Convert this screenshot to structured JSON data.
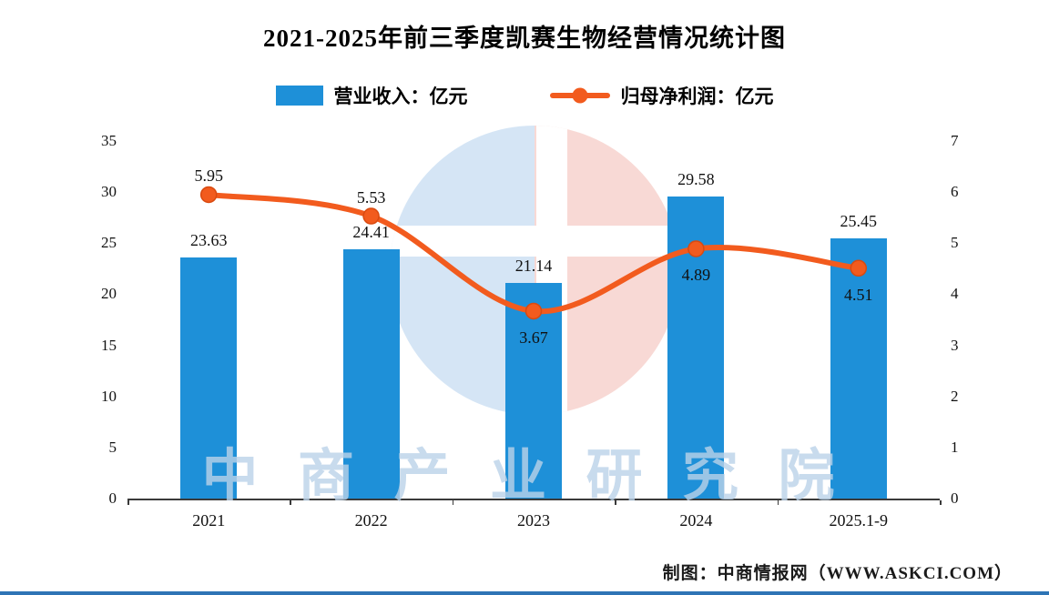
{
  "title": "2021-2025年前三季度凯赛生物经营情况统计图",
  "legend": [
    {
      "label": "营业收入：亿元",
      "type": "bar",
      "color": "#1E90D8"
    },
    {
      "label": "归母净利润：亿元",
      "type": "line",
      "color": "#F25B1E"
    }
  ],
  "watermark": {
    "text": "中 商 产 业 研 究 院"
  },
  "footer": {
    "credit": "制图：中商情报网（WWW.ASKCI.COM）"
  },
  "colors": {
    "bar": "#1E90D8",
    "line": "#F25B1E",
    "line_marker_edge": "#D94A10",
    "bottom_rule": "#2E74B5"
  },
  "chart_data": {
    "type": "bar",
    "subtype": "bar+line combo, dual y-axis",
    "categories": [
      "2021",
      "2022",
      "2023",
      "2024",
      "2025.1-9"
    ],
    "series": [
      {
        "name": "营业收入：亿元",
        "type": "bar",
        "axis": "left",
        "color": "#1E90D8",
        "values": [
          23.63,
          24.41,
          21.14,
          29.58,
          25.45
        ]
      },
      {
        "name": "归母净利润：亿元",
        "type": "line",
        "axis": "right",
        "color": "#F25B1E",
        "values": [
          5.95,
          5.53,
          3.67,
          4.89,
          4.51
        ]
      }
    ],
    "left_axis": {
      "min": 0,
      "max": 35,
      "ticks": [
        35,
        30,
        25,
        20,
        15,
        10,
        5,
        0
      ]
    },
    "right_axis": {
      "min": 0,
      "max": 7,
      "ticks": [
        7,
        6,
        5,
        4,
        3,
        2,
        1,
        0
      ]
    },
    "grid": false,
    "legend_position": "top-center",
    "data_labels": true
  }
}
